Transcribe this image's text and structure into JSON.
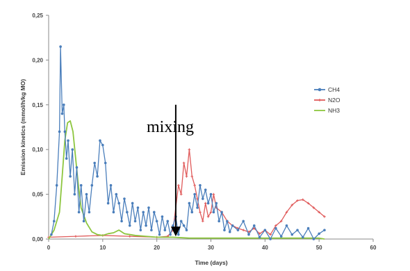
{
  "chart_data": {
    "type": "line",
    "xlabel": "Time (days)",
    "ylabel": "Emission kinetics (mmol/h/kg MO)",
    "xlim": [
      0,
      60
    ],
    "ylim": [
      0,
      0.25
    ],
    "x_ticks": [
      "0",
      "10",
      "20",
      "30",
      "40",
      "50",
      "60"
    ],
    "y_ticks": [
      "0,00",
      "0,05",
      "0,10",
      "0,15",
      "0,20",
      "0,25"
    ],
    "grid": false,
    "legend_position": "right",
    "annotation": {
      "text": "mixing",
      "x": 23.5,
      "y_from": 0.15,
      "y_to": 0.003
    },
    "colors": {
      "CH4": "#4a7ebb",
      "N2O": "#e05a5a",
      "NH3": "#8dc63f"
    },
    "series": [
      {
        "name": "CH4",
        "markers": true,
        "x": [
          0.5,
          1,
          1.5,
          2,
          2.2,
          2.5,
          2.8,
          3,
          3.3,
          3.6,
          4,
          4.4,
          4.8,
          5.2,
          5.6,
          6,
          6.5,
          7,
          7.5,
          8,
          8.5,
          9,
          9.5,
          10,
          10.5,
          11,
          11.5,
          12,
          12.5,
          13,
          13.5,
          14,
          14.5,
          15,
          15.5,
          16,
          16.5,
          17,
          17.5,
          18,
          18.5,
          19,
          19.5,
          20,
          20.5,
          21,
          21.5,
          22,
          22.5,
          23,
          23.5,
          24,
          24.5,
          25,
          25.5,
          26,
          26.5,
          27,
          27.5,
          28,
          28.5,
          29,
          29.5,
          30,
          30.5,
          31,
          31.5,
          32,
          32.5,
          33,
          33.5,
          34,
          35,
          36,
          37,
          38,
          39,
          40,
          41,
          42,
          43,
          44,
          45,
          46,
          47,
          48,
          49,
          50,
          51
        ],
        "y": [
          0.005,
          0.02,
          0.06,
          0.12,
          0.215,
          0.14,
          0.15,
          0.12,
          0.09,
          0.11,
          0.07,
          0.1,
          0.05,
          0.08,
          0.03,
          0.06,
          0.02,
          0.05,
          0.03,
          0.06,
          0.085,
          0.07,
          0.11,
          0.105,
          0.085,
          0.04,
          0.06,
          0.03,
          0.05,
          0.04,
          0.02,
          0.045,
          0.03,
          0.015,
          0.04,
          0.02,
          0.035,
          0.01,
          0.03,
          0.015,
          0.035,
          0.01,
          0.03,
          0.02,
          0.005,
          0.025,
          0.01,
          0.02,
          0.005,
          0.015,
          0.025,
          0.005,
          0.02,
          0.015,
          0.01,
          0.04,
          0.03,
          0.05,
          0.035,
          0.06,
          0.045,
          0.055,
          0.04,
          0.05,
          0.03,
          0.04,
          0.02,
          0.03,
          0.01,
          0.02,
          0.008,
          0.015,
          0.01,
          0.02,
          0.005,
          0.015,
          0.002,
          0.01,
          0.0,
          0.012,
          0.003,
          0.015,
          0.005,
          0.01,
          0.002,
          0.012,
          0.0,
          0.006,
          0.01
        ]
      },
      {
        "name": "N2O",
        "markers": true,
        "x": [
          0,
          5,
          10,
          15,
          20,
          22,
          23,
          24,
          24.5,
          25,
          25.5,
          26,
          26.5,
          27,
          27.5,
          28,
          28.5,
          29,
          29.5,
          30,
          30.5,
          31,
          32,
          33,
          34,
          35,
          36,
          37,
          38,
          39,
          40,
          41,
          42,
          43,
          44,
          45,
          46,
          47,
          48,
          49,
          50,
          51
        ],
        "y": [
          0.002,
          0.003,
          0.004,
          0.003,
          0.002,
          0.003,
          0.01,
          0.06,
          0.05,
          0.085,
          0.07,
          0.1,
          0.07,
          0.06,
          0.045,
          0.03,
          0.02,
          0.04,
          0.025,
          0.03,
          0.05,
          0.035,
          0.03,
          0.02,
          0.015,
          0.012,
          0.01,
          0.008,
          0.012,
          0.006,
          0.01,
          0.005,
          0.015,
          0.02,
          0.03,
          0.038,
          0.043,
          0.044,
          0.04,
          0.035,
          0.03,
          0.025
        ]
      },
      {
        "name": "NH3",
        "markers": false,
        "x": [
          0,
          1,
          2,
          2.5,
          3,
          3.5,
          4,
          4.5,
          5,
          5.5,
          6,
          7,
          8,
          9,
          10,
          11,
          12,
          13,
          14,
          16,
          18,
          20,
          23,
          26,
          30,
          35,
          40,
          45,
          50,
          51
        ],
        "y": [
          0.0,
          0.01,
          0.03,
          0.07,
          0.11,
          0.13,
          0.132,
          0.12,
          0.09,
          0.06,
          0.035,
          0.018,
          0.008,
          0.005,
          0.004,
          0.006,
          0.007,
          0.01,
          0.006,
          0.004,
          0.003,
          0.002,
          0.002,
          0.001,
          0.001,
          0.001,
          0.001,
          0.001,
          0.001,
          0.0
        ]
      }
    ]
  }
}
